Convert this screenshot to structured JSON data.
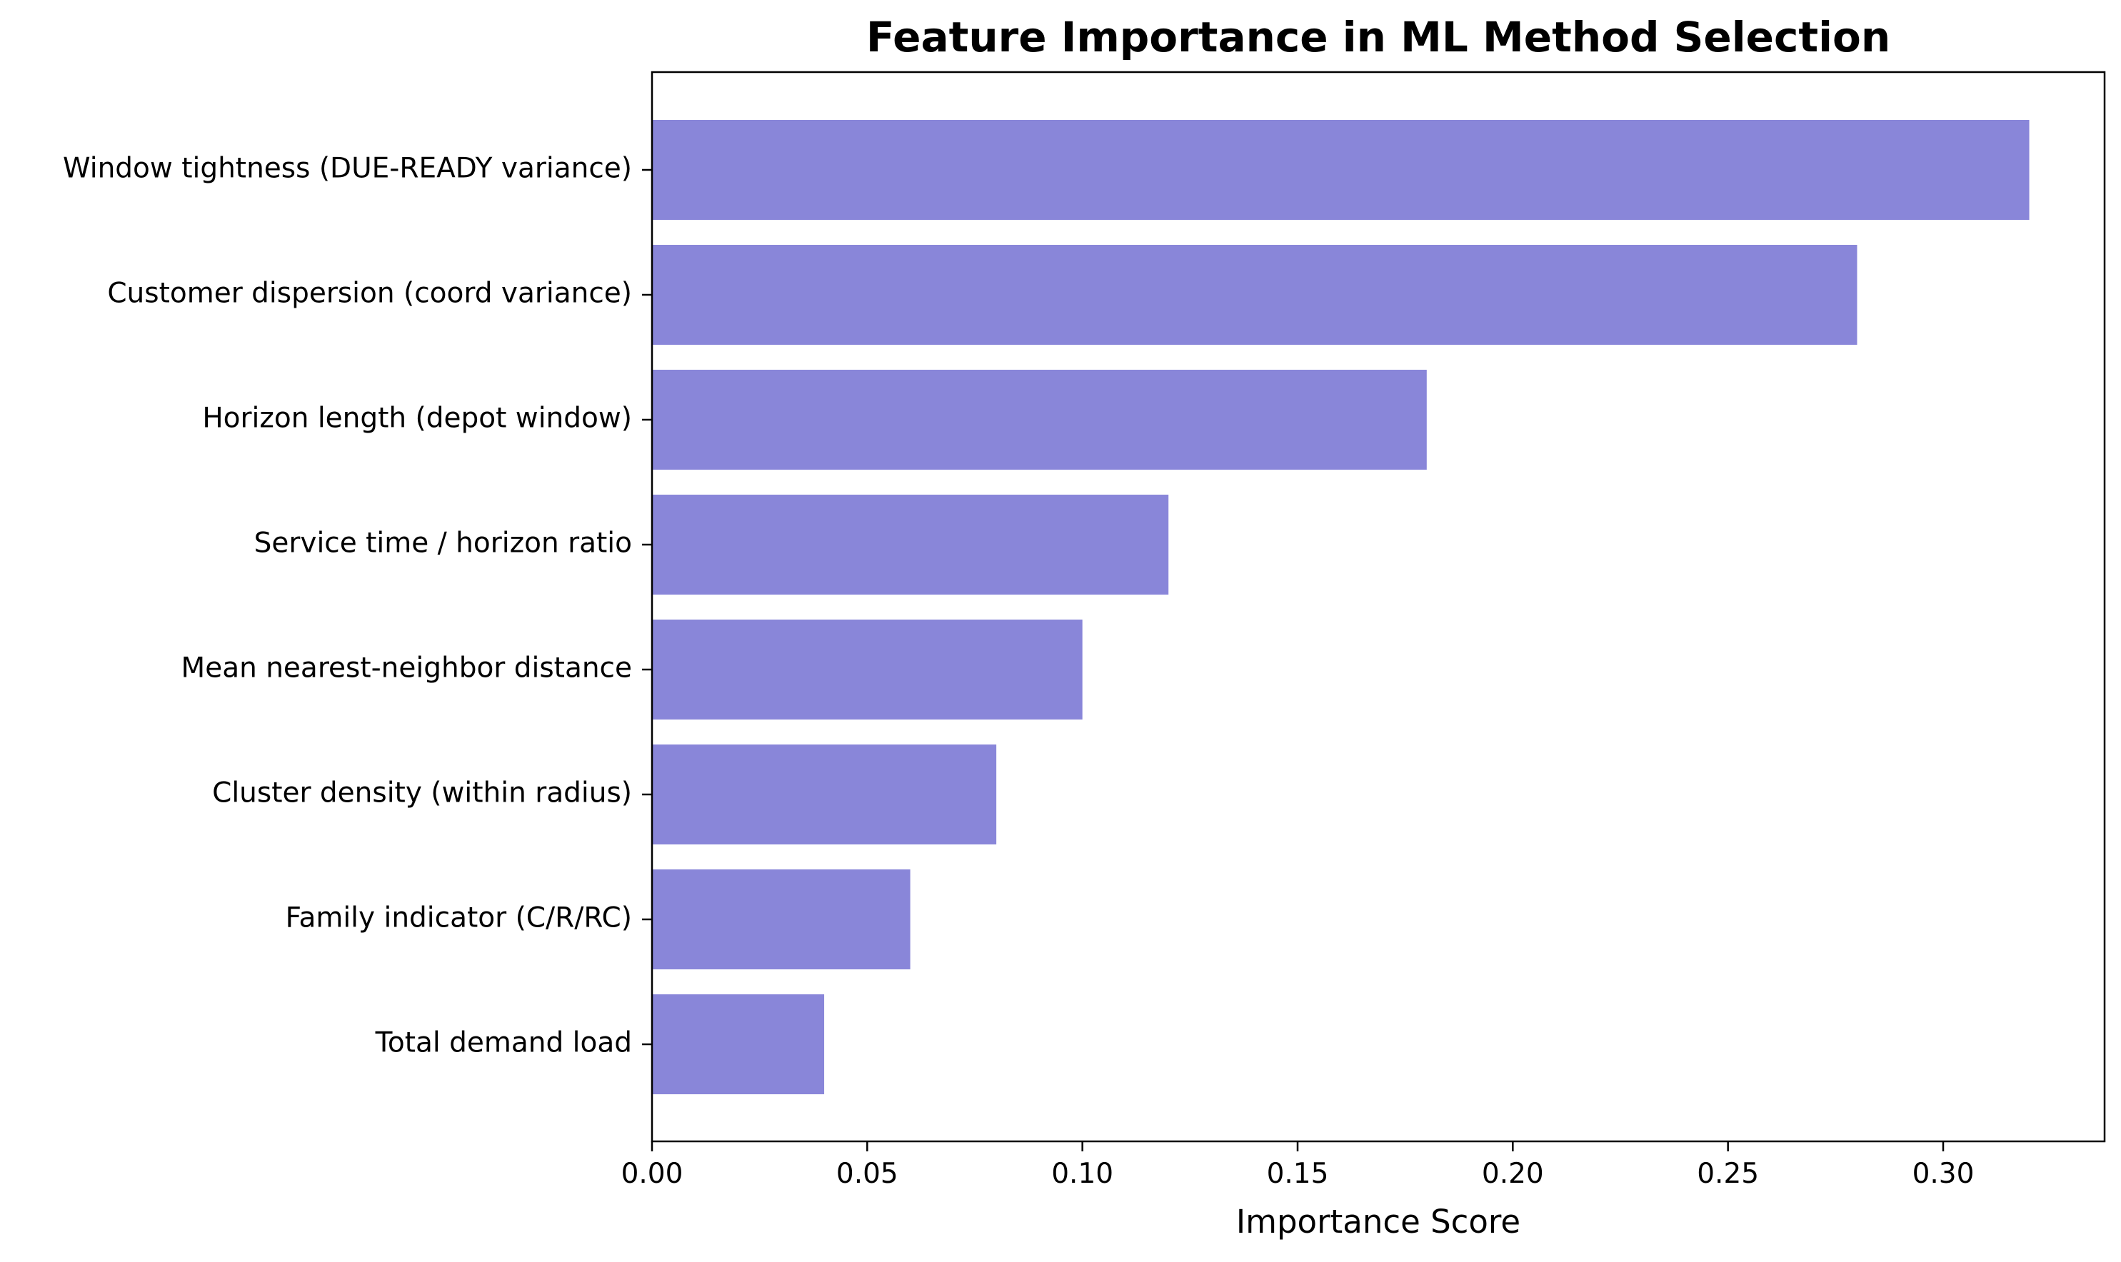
{
  "chart_data": {
    "type": "bar",
    "orientation": "horizontal",
    "title": "Feature Importance in ML Method Selection",
    "xlabel": "Importance Score",
    "ylabel": "",
    "xlim": [
      0,
      0.3375
    ],
    "x_ticks": [
      "0.00",
      "0.05",
      "0.10",
      "0.15",
      "0.20",
      "0.25",
      "0.30"
    ],
    "categories": [
      "Window tightness (DUE-READY variance)",
      "Customer dispersion (coord variance)",
      "Horizon length (depot window)",
      "Service time / horizon ratio",
      "Mean nearest-neighbor distance",
      "Cluster density (within radius)",
      "Family indicator (C/R/RC)",
      "Total demand load"
    ],
    "values": [
      0.32,
      0.28,
      0.18,
      0.12,
      0.1,
      0.08,
      0.06,
      0.04
    ],
    "bar_color": "#8986d9",
    "grid": false,
    "legend": "none"
  }
}
